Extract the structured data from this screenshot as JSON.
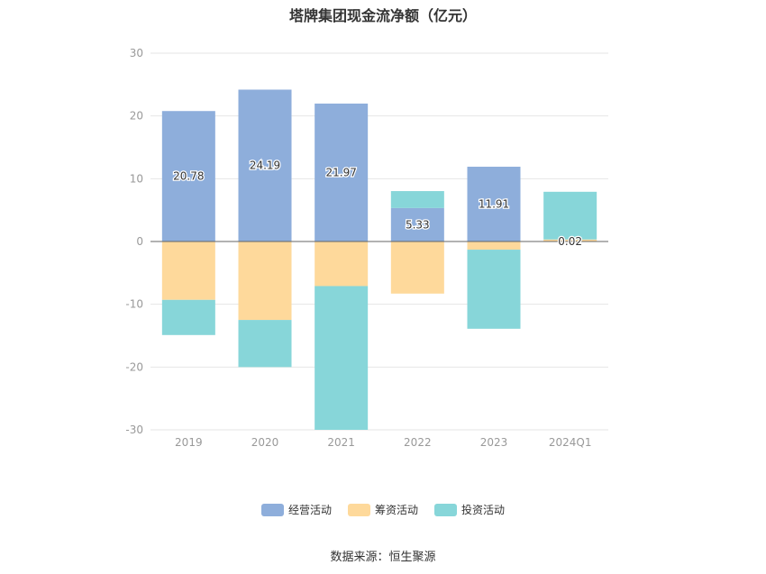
{
  "title": "塔牌集团现金流净额（亿元）",
  "source": "数据来源：恒生聚源",
  "colors": {
    "operating": "#8eaedb",
    "financing": "#fed99b",
    "investing": "#87d6d9",
    "grid": "#e6e6e6",
    "axis": "#666666",
    "tick_text": "#999999"
  },
  "chart_data": {
    "type": "bar",
    "stacked": true,
    "categories": [
      "2019",
      "2020",
      "2021",
      "2022",
      "2023",
      "2024Q1"
    ],
    "ylim": [
      -30,
      30
    ],
    "yticks": [
      30,
      20,
      10,
      0,
      -10,
      -20,
      -30
    ],
    "grid": true,
    "legend_position": "bottom",
    "series": [
      {
        "name": "经营活动",
        "color": "#8eaedb",
        "values": [
          20.78,
          24.19,
          21.97,
          5.33,
          11.91,
          0.02
        ]
      },
      {
        "name": "筹资活动",
        "color": "#fed99b",
        "values": [
          -9.3,
          -12.5,
          -7.1,
          -8.3,
          -1.3,
          0.3
        ]
      },
      {
        "name": "投资活动",
        "color": "#87d6d9",
        "values": [
          -5.6,
          -7.5,
          -22.9,
          2.7,
          -12.6,
          7.6
        ]
      }
    ],
    "data_labels": [
      "20.78",
      "24.19",
      "21.97",
      "5.33",
      "11.91",
      "0.02"
    ]
  },
  "legend": [
    {
      "label": "经营活动",
      "color": "#8eaedb"
    },
    {
      "label": "筹资活动",
      "color": "#fed99b"
    },
    {
      "label": "投资活动",
      "color": "#87d6d9"
    }
  ]
}
